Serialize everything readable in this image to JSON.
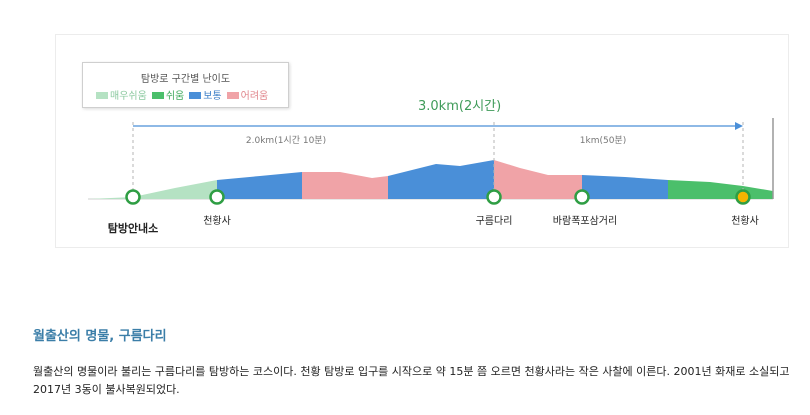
{
  "legend": {
    "title": "탐방로 구간별 난이도",
    "items": [
      {
        "label": "매우쉬움",
        "color": "#b5e2c3"
      },
      {
        "label": "쉬움",
        "color": "#4bbf6b"
      },
      {
        "label": "보통",
        "color": "#4a8fd8"
      },
      {
        "label": "어려움",
        "color": "#f0a3a7"
      }
    ]
  },
  "route": {
    "total_distance": "3.0km(2시간)",
    "segment1_distance": "2.0km(1시간 10분)",
    "segment2_distance": "1km(50분)",
    "waypoints": [
      "탐방안내소",
      "천황사",
      "구름다리",
      "바람폭포삼거리",
      "천황사"
    ]
  },
  "article": {
    "title": "월출산의 명물, 구름다리",
    "body": "월출산의 명물이라 불리는 구름다리를 탐방하는 코스이다. 천황 탐방로 입구를 시작으로 약 15분 쯤 오르면 천황사라는 작은 사찰에 이른다. 2001년 화재로 소실되고 2017년 3동이 불사복원되었다."
  }
}
